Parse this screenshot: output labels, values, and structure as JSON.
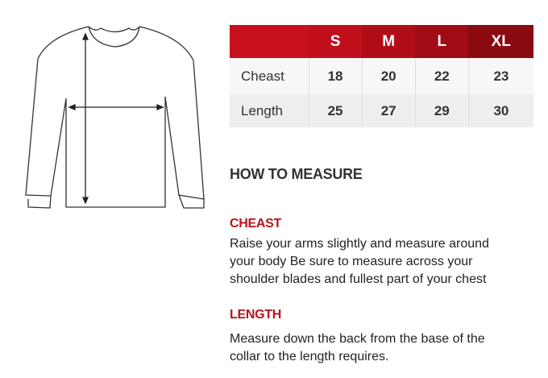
{
  "size_table": {
    "headers": [
      "",
      "S",
      "M",
      "L",
      "XL"
    ],
    "rows": [
      {
        "label": "Cheast",
        "values": [
          "18",
          "20",
          "22",
          "23"
        ]
      },
      {
        "label": "Length",
        "values": [
          "25",
          "27",
          "29",
          "30"
        ]
      }
    ]
  },
  "how_to": {
    "title": "HOW TO MEASURE",
    "sections": [
      {
        "heading": "CHEAST",
        "lines": [
          "Raise your arms slightly and measure around",
          "your body Be sure to measure across your",
          "shoulder blades and fullest part of your chest"
        ]
      },
      {
        "heading": "LENGTH",
        "lines": [
          "Measure down the back from the base of the",
          "collar to the length requires."
        ]
      }
    ]
  },
  "colors": {
    "header_red": "#c8101c",
    "header_dark": "#8a0a12"
  }
}
